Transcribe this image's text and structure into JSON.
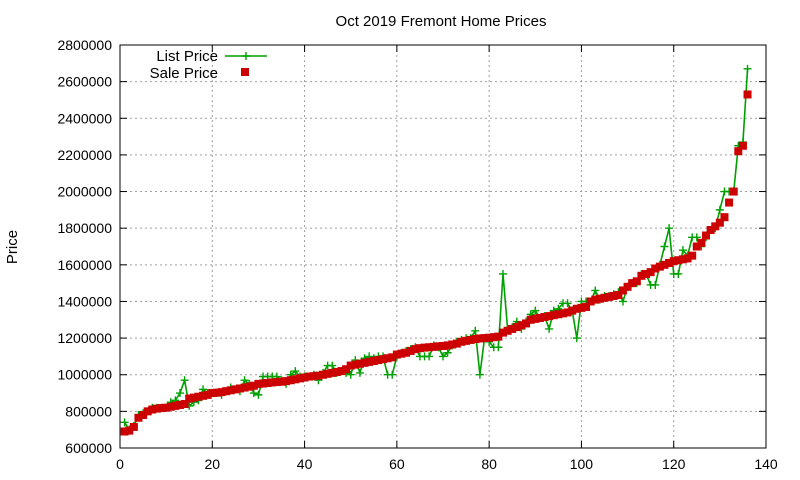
{
  "chart_data": {
    "type": "line",
    "title": "Oct 2019 Fremont Home Prices",
    "xlabel": "",
    "ylabel": "Price",
    "xlim": [
      0,
      140
    ],
    "ylim": [
      600000,
      2800000
    ],
    "xticks": [
      0,
      20,
      40,
      60,
      80,
      100,
      120,
      140
    ],
    "yticks": [
      600000,
      800000,
      1000000,
      1200000,
      1400000,
      1600000,
      1800000,
      2000000,
      2200000,
      2400000,
      2600000,
      2800000
    ],
    "grid": true,
    "legend": "top-left",
    "series": [
      {
        "name": "List Price",
        "style": "line+cross",
        "color": "#00a000",
        "x": [
          1,
          2,
          3,
          4,
          5,
          6,
          7,
          8,
          9,
          10,
          11,
          12,
          13,
          14,
          15,
          16,
          17,
          18,
          19,
          20,
          21,
          22,
          23,
          24,
          25,
          26,
          27,
          28,
          29,
          30,
          31,
          32,
          33,
          34,
          35,
          36,
          37,
          38,
          39,
          40,
          41,
          42,
          43,
          44,
          45,
          46,
          47,
          48,
          49,
          50,
          51,
          52,
          53,
          54,
          55,
          56,
          57,
          58,
          59,
          60,
          61,
          62,
          63,
          64,
          65,
          66,
          67,
          68,
          69,
          70,
          71,
          72,
          73,
          74,
          75,
          76,
          77,
          78,
          79,
          80,
          81,
          82,
          83,
          84,
          85,
          86,
          87,
          88,
          89,
          90,
          91,
          92,
          93,
          94,
          95,
          96,
          97,
          98,
          99,
          100,
          101,
          102,
          103,
          104,
          105,
          106,
          107,
          108,
          109,
          110,
          111,
          112,
          113,
          114,
          115,
          116,
          117,
          118,
          119,
          120,
          121,
          122,
          123,
          124,
          125,
          126,
          127,
          128,
          129,
          130,
          131,
          132,
          133,
          134,
          135,
          136
        ],
        "y": [
          740000,
          700000,
          720000,
          780000,
          790000,
          800000,
          820000,
          820000,
          820000,
          820000,
          850000,
          860000,
          900000,
          970000,
          830000,
          850000,
          860000,
          920000,
          900000,
          900000,
          900000,
          890000,
          910000,
          930000,
          920000,
          910000,
          970000,
          950000,
          900000,
          890000,
          990000,
          990000,
          990000,
          990000,
          970000,
          950000,
          1000000,
          1020000,
          990000,
          990000,
          990000,
          1000000,
          970000,
          1010000,
          1050000,
          1050000,
          1010000,
          1020000,
          1010000,
          1000000,
          1080000,
          1010000,
          1090000,
          1100000,
          1090000,
          1100000,
          1100000,
          1000000,
          1000000,
          1100000,
          1120000,
          1130000,
          1140000,
          1150000,
          1100000,
          1100000,
          1100000,
          1160000,
          1150000,
          1100000,
          1120000,
          1160000,
          1180000,
          1190000,
          1200000,
          1200000,
          1240000,
          1000000,
          1200000,
          1180000,
          1150000,
          1150000,
          1550000,
          1250000,
          1260000,
          1290000,
          1250000,
          1290000,
          1330000,
          1350000,
          1310000,
          1320000,
          1250000,
          1350000,
          1360000,
          1390000,
          1390000,
          1350000,
          1200000,
          1400000,
          1400000,
          1400000,
          1460000,
          1410000,
          1430000,
          1430000,
          1440000,
          1450000,
          1400000,
          1480000,
          1500000,
          1500000,
          1550000,
          1550000,
          1490000,
          1490000,
          1600000,
          1700000,
          1800000,
          1550000,
          1550000,
          1680000,
          1650000,
          1750000,
          1750000,
          1700000,
          1750000,
          1790000,
          1800000,
          1900000,
          2000000,
          2000000,
          2000000,
          2250000,
          2270000,
          2670000
        ]
      },
      {
        "name": "Sale Price",
        "style": "square",
        "color": "#cc0000",
        "x": [
          1,
          2,
          3,
          4,
          5,
          6,
          7,
          8,
          9,
          10,
          11,
          12,
          13,
          14,
          15,
          16,
          17,
          18,
          19,
          20,
          21,
          22,
          23,
          24,
          25,
          26,
          27,
          28,
          29,
          30,
          31,
          32,
          33,
          34,
          35,
          36,
          37,
          38,
          39,
          40,
          41,
          42,
          43,
          44,
          45,
          46,
          47,
          48,
          49,
          50,
          51,
          52,
          53,
          54,
          55,
          56,
          57,
          58,
          59,
          60,
          61,
          62,
          63,
          64,
          65,
          66,
          67,
          68,
          69,
          70,
          71,
          72,
          73,
          74,
          75,
          76,
          77,
          78,
          79,
          80,
          81,
          82,
          83,
          84,
          85,
          86,
          87,
          88,
          89,
          90,
          91,
          92,
          93,
          94,
          95,
          96,
          97,
          98,
          99,
          100,
          101,
          102,
          103,
          104,
          105,
          106,
          107,
          108,
          109,
          110,
          111,
          112,
          113,
          114,
          115,
          116,
          117,
          118,
          119,
          120,
          121,
          122,
          123,
          124,
          125,
          126,
          127,
          128,
          129,
          130,
          131,
          132,
          133,
          134,
          135,
          136
        ],
        "y": [
          690000,
          695000,
          715000,
          765000,
          780000,
          800000,
          810000,
          815000,
          818000,
          820000,
          825000,
          830000,
          835000,
          840000,
          870000,
          875000,
          880000,
          885000,
          890000,
          900000,
          902000,
          905000,
          910000,
          915000,
          920000,
          925000,
          930000,
          935000,
          940000,
          950000,
          952000,
          955000,
          958000,
          960000,
          962000,
          965000,
          970000,
          975000,
          980000,
          985000,
          990000,
          992000,
          995000,
          1000000,
          1005000,
          1010000,
          1015000,
          1020000,
          1030000,
          1050000,
          1055000,
          1060000,
          1065000,
          1070000,
          1075000,
          1080000,
          1085000,
          1090000,
          1095000,
          1110000,
          1115000,
          1120000,
          1130000,
          1140000,
          1145000,
          1148000,
          1150000,
          1152000,
          1155000,
          1157000,
          1160000,
          1165000,
          1170000,
          1180000,
          1185000,
          1190000,
          1195000,
          1198000,
          1200000,
          1202000,
          1205000,
          1208000,
          1230000,
          1240000,
          1250000,
          1260000,
          1270000,
          1280000,
          1300000,
          1305000,
          1310000,
          1315000,
          1320000,
          1325000,
          1330000,
          1335000,
          1340000,
          1350000,
          1360000,
          1365000,
          1370000,
          1400000,
          1410000,
          1415000,
          1420000,
          1425000,
          1430000,
          1435000,
          1460000,
          1480000,
          1500000,
          1510000,
          1540000,
          1550000,
          1560000,
          1580000,
          1590000,
          1600000,
          1610000,
          1620000,
          1625000,
          1630000,
          1635000,
          1650000,
          1700000,
          1720000,
          1760000,
          1790000,
          1810000,
          1830000,
          1860000,
          1940000,
          2000000,
          2220000,
          2250000,
          2530000
        ]
      }
    ]
  }
}
